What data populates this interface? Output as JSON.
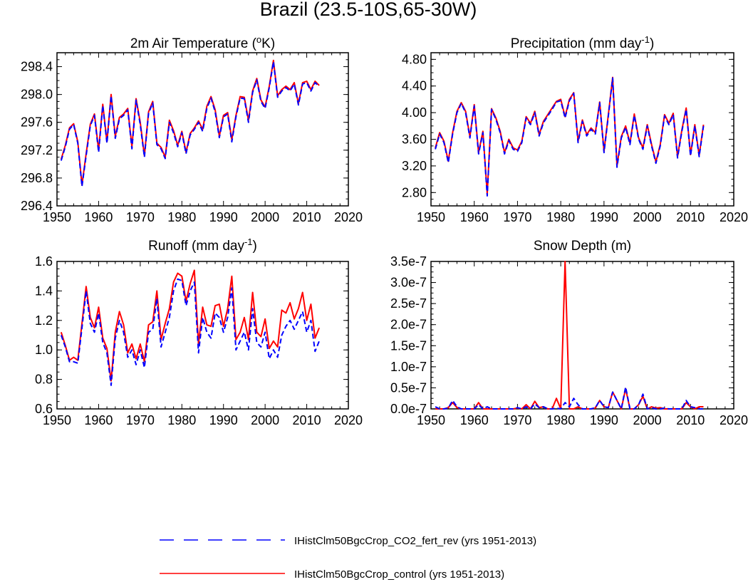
{
  "figure": {
    "title": "Brazil (23.5-10S,65-30W)"
  },
  "legend": {
    "entries": [
      {
        "label": "IHistClm50BgcCrop_CO2_fert_rev (yrs 1951-2013)",
        "color": "#0000ff",
        "style": "dashed"
      },
      {
        "label": "IHistClm50BgcCrop_control (yrs 1951-2013)",
        "color": "#ff0000",
        "style": "solid"
      }
    ]
  },
  "chart_data": [
    {
      "type": "line",
      "title": "2m Air Temperature (°K)",
      "title_parts": {
        "main": "2m Air Temperature (",
        "sup": "o",
        "tail": "K)"
      },
      "xlim": [
        1950,
        2020
      ],
      "ylim": [
        296.4,
        298.6
      ],
      "xticks": [
        1950,
        1960,
        1970,
        1980,
        1990,
        2000,
        2010,
        2020
      ],
      "yticks": [
        296.4,
        296.8,
        297.2,
        297.6,
        298.0,
        298.4
      ],
      "ytick_labels": [
        "296.4",
        "296.8",
        "297.2",
        "297.6",
        "298.0",
        "298.4"
      ],
      "x_start": 1951,
      "series": [
        {
          "name": "IHistClm50BgcCrop_CO2_fert_rev (yrs 1951-2013)",
          "color": "#0000ff",
          "dashed": true,
          "values": [
            297.05,
            297.25,
            297.5,
            297.57,
            297.3,
            296.68,
            297.12,
            297.55,
            297.7,
            297.17,
            297.84,
            297.3,
            297.98,
            297.37,
            297.65,
            297.7,
            297.78,
            297.22,
            297.92,
            297.57,
            297.1,
            297.73,
            297.88,
            297.28,
            297.22,
            297.08,
            297.6,
            297.45,
            297.25,
            297.45,
            297.15,
            297.42,
            297.5,
            297.6,
            297.47,
            297.8,
            297.95,
            297.75,
            297.38,
            297.68,
            297.72,
            297.32,
            297.68,
            297.95,
            297.94,
            297.6,
            298.03,
            298.21,
            297.9,
            297.8,
            298.1,
            298.47,
            297.96,
            298.05,
            298.1,
            298.05,
            298.15,
            297.85,
            298.15,
            298.17,
            298.05,
            298.17,
            298.12
          ]
        },
        {
          "name": "IHistClm50BgcCrop_control (yrs 1951-2013)",
          "color": "#ff0000",
          "dashed": false,
          "values": [
            297.07,
            297.27,
            297.52,
            297.58,
            297.32,
            296.7,
            297.15,
            297.57,
            297.72,
            297.2,
            297.86,
            297.32,
            298.0,
            297.4,
            297.67,
            297.72,
            297.8,
            297.25,
            297.94,
            297.6,
            297.12,
            297.75,
            297.9,
            297.3,
            297.24,
            297.1,
            297.63,
            297.48,
            297.27,
            297.47,
            297.17,
            297.44,
            297.52,
            297.62,
            297.5,
            297.83,
            297.97,
            297.78,
            297.4,
            297.7,
            297.74,
            297.35,
            297.7,
            297.97,
            297.96,
            297.63,
            298.05,
            298.23,
            297.92,
            297.82,
            298.12,
            298.49,
            297.98,
            298.07,
            298.12,
            298.07,
            298.17,
            297.87,
            298.17,
            298.19,
            298.07,
            298.19,
            298.13
          ]
        }
      ]
    },
    {
      "type": "line",
      "title": "Precipitation (mm day-1)",
      "title_parts": {
        "main": "Precipitation (mm day",
        "sup": "-1",
        "tail": ")"
      },
      "xlim": [
        1950,
        2020
      ],
      "ylim": [
        2.6,
        4.9
      ],
      "xticks": [
        1950,
        1960,
        1970,
        1980,
        1990,
        2000,
        2010,
        2020
      ],
      "yticks": [
        2.8,
        3.2,
        3.6,
        4.0,
        4.4,
        4.8
      ],
      "ytick_labels": [
        "2.80",
        "3.20",
        "3.60",
        "4.00",
        "4.40",
        "4.80"
      ],
      "x_start": 1951,
      "series": [
        {
          "name": "IHistClm50BgcCrop_CO2_fert_rev (yrs 1951-2013)",
          "color": "#0000ff",
          "dashed": true,
          "values": [
            3.45,
            3.68,
            3.55,
            3.25,
            3.68,
            4.0,
            4.14,
            4.0,
            3.62,
            4.1,
            3.38,
            3.7,
            2.75,
            4.05,
            3.9,
            3.7,
            3.38,
            3.58,
            3.45,
            3.42,
            3.55,
            3.92,
            3.82,
            4.0,
            3.65,
            3.85,
            3.95,
            4.05,
            4.16,
            4.18,
            3.92,
            4.18,
            4.29,
            3.55,
            3.87,
            3.65,
            3.75,
            3.68,
            4.15,
            3.4,
            3.95,
            4.52,
            3.18,
            3.62,
            3.78,
            3.52,
            3.96,
            3.6,
            3.45,
            3.8,
            3.5,
            3.24,
            3.5,
            3.95,
            3.82,
            3.97,
            3.32,
            3.72,
            4.05,
            3.35,
            3.8,
            3.34,
            3.8
          ]
        },
        {
          "name": "IHistClm50BgcCrop_control (yrs 1951-2013)",
          "color": "#ff0000",
          "dashed": false,
          "values": [
            3.47,
            3.7,
            3.57,
            3.27,
            3.7,
            4.02,
            4.15,
            4.02,
            3.64,
            4.12,
            3.4,
            3.72,
            2.78,
            4.06,
            3.92,
            3.72,
            3.4,
            3.6,
            3.47,
            3.44,
            3.57,
            3.94,
            3.84,
            4.02,
            3.67,
            3.87,
            3.97,
            4.07,
            4.17,
            4.2,
            3.94,
            4.2,
            4.3,
            3.57,
            3.89,
            3.67,
            3.77,
            3.7,
            4.16,
            3.42,
            3.97,
            4.53,
            3.2,
            3.64,
            3.8,
            3.54,
            3.98,
            3.62,
            3.47,
            3.82,
            3.52,
            3.26,
            3.52,
            3.97,
            3.84,
            3.99,
            3.34,
            3.74,
            4.07,
            3.37,
            3.82,
            3.36,
            3.82
          ]
        }
      ]
    },
    {
      "type": "line",
      "title": "Runoff (mm day-1)",
      "title_parts": {
        "main": "Runoff (mm day",
        "sup": "-1",
        "tail": ")"
      },
      "xlim": [
        1950,
        2020
      ],
      "ylim": [
        0.6,
        1.6
      ],
      "xticks": [
        1950,
        1960,
        1970,
        1980,
        1990,
        2000,
        2010,
        2020
      ],
      "yticks": [
        0.6,
        0.8,
        1.0,
        1.2,
        1.4,
        1.6
      ],
      "ytick_labels": [
        "0.6",
        "0.8",
        "1.0",
        "1.2",
        "1.4",
        "1.6"
      ],
      "x_start": 1951,
      "series": [
        {
          "name": "IHistClm50BgcCrop_CO2_fert_rev (yrs 1951-2013)",
          "color": "#0000ff",
          "dashed": true,
          "values": [
            1.1,
            1.02,
            0.92,
            0.92,
            0.91,
            1.15,
            1.4,
            1.18,
            1.12,
            1.25,
            1.05,
            0.98,
            0.76,
            1.08,
            1.2,
            1.12,
            0.95,
            1.0,
            0.9,
            1.0,
            0.88,
            1.12,
            1.14,
            1.35,
            1.02,
            1.12,
            1.22,
            1.4,
            1.48,
            1.47,
            1.3,
            1.4,
            1.46,
            0.98,
            1.22,
            1.12,
            1.08,
            1.25,
            1.22,
            1.12,
            1.22,
            1.42,
            1.0,
            1.06,
            1.12,
            1.0,
            1.28,
            1.05,
            1.02,
            1.12,
            0.94,
            1.0,
            0.95,
            1.1,
            1.16,
            1.2,
            1.14,
            1.2,
            1.26,
            1.12,
            1.2,
            0.99,
            1.06
          ]
        },
        {
          "name": "IHistClm50BgcCrop_control (yrs 1951-2013)",
          "color": "#ff0000",
          "dashed": false,
          "values": [
            1.12,
            1.03,
            0.93,
            0.95,
            0.93,
            1.18,
            1.43,
            1.22,
            1.15,
            1.29,
            1.08,
            1.01,
            0.79,
            1.12,
            1.26,
            1.17,
            0.98,
            1.04,
            0.94,
            1.04,
            0.92,
            1.17,
            1.19,
            1.4,
            1.07,
            1.18,
            1.28,
            1.46,
            1.52,
            1.5,
            1.33,
            1.45,
            1.54,
            1.04,
            1.29,
            1.17,
            1.16,
            1.3,
            1.31,
            1.16,
            1.28,
            1.5,
            1.07,
            1.12,
            1.22,
            1.07,
            1.39,
            1.12,
            1.09,
            1.21,
            1.01,
            1.06,
            1.02,
            1.27,
            1.25,
            1.32,
            1.21,
            1.28,
            1.39,
            1.2,
            1.31,
            1.08,
            1.15
          ]
        }
      ]
    },
    {
      "type": "line",
      "title": "Snow Depth (m)",
      "title_parts": {
        "main": "Snow Depth (m)",
        "sup": "",
        "tail": ""
      },
      "xlim": [
        1950,
        2020
      ],
      "ylim": [
        0.0,
        3.5e-07
      ],
      "xticks": [
        1950,
        1960,
        1970,
        1980,
        1990,
        2000,
        2010,
        2020
      ],
      "yticks": [
        0.0,
        5e-08,
        1e-07,
        1.5e-07,
        2e-07,
        2.5e-07,
        3e-07,
        3.5e-07
      ],
      "ytick_labels": [
        "0.0e-7",
        "0.5e-7",
        "1.0e-7",
        "1.5e-7",
        "2.0e-7",
        "2.5e-7",
        "3.0e-7",
        "3.5e-7"
      ],
      "x_start": 1951,
      "series": [
        {
          "name": "IHistClm50BgcCrop_CO2_fert_rev (yrs 1951-2013)",
          "color": "#0000ff",
          "dashed": true,
          "values": [
            5e-09,
            0,
            0,
            2e-09,
            2e-08,
            5e-09,
            0,
            0,
            0,
            0,
            1e-08,
            0,
            5e-09,
            0,
            0,
            0,
            0,
            0,
            0,
            3e-09,
            0,
            5e-09,
            0,
            1.2e-08,
            3e-09,
            5e-09,
            0,
            0,
            2e-09,
            0,
            1.5e-08,
            5e-09,
            2.5e-08,
            1e-08,
            0,
            0,
            0,
            3e-09,
            2e-08,
            5e-09,
            3e-09,
            4e-08,
            2e-08,
            0,
            5.2e-08,
            0,
            0,
            1e-08,
            3.5e-08,
            0,
            3e-09,
            0,
            0,
            2e-09,
            0,
            0,
            0,
            0,
            2e-08,
            5e-09,
            3e-09,
            0,
            0
          ]
        },
        {
          "name": "IHistClm50BgcCrop_control (yrs 1951-2013)",
          "color": "#ff0000",
          "dashed": false,
          "values": [
            0,
            0,
            0,
            3e-09,
            1.5e-08,
            3e-09,
            0,
            0,
            0,
            0,
            1.5e-08,
            0,
            0,
            0,
            0,
            0,
            0,
            0,
            0,
            2e-09,
            0,
            1e-08,
            0,
            1.8e-08,
            3e-09,
            5e-09,
            0,
            0,
            2.5e-08,
            0,
            3.5e-07,
            0,
            0,
            5e-09,
            0,
            0,
            0,
            2e-09,
            2e-08,
            5e-09,
            3e-09,
            4e-08,
            2e-08,
            0,
            4.8e-08,
            0,
            0,
            1e-08,
            3e-08,
            0,
            5e-09,
            2e-09,
            3e-09,
            0,
            0,
            0,
            0,
            0,
            1.5e-08,
            5e-09,
            0,
            5e-09,
            5e-09
          ]
        }
      ]
    }
  ]
}
